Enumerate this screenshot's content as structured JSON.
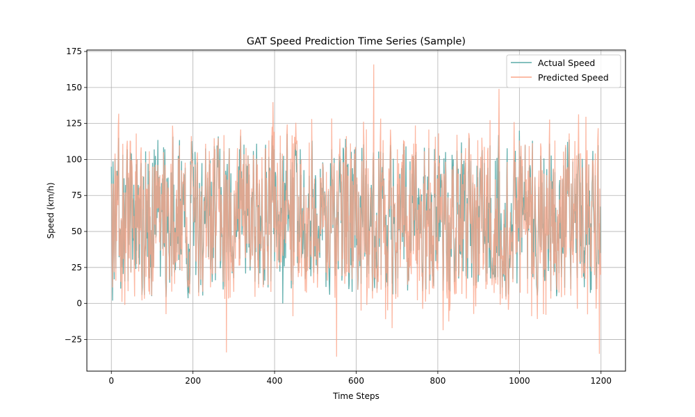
{
  "chart_data": {
    "type": "line",
    "title": "GAT Speed Prediction Time Series (Sample)",
    "xlabel": "Time Steps",
    "ylabel": "Speed (km/h)",
    "xlim": [
      -60,
      1260
    ],
    "ylim": [
      -47,
      176
    ],
    "xticks": [
      0,
      200,
      400,
      600,
      800,
      1000,
      1200
    ],
    "yticks": [
      -25,
      0,
      25,
      50,
      75,
      100,
      125,
      150,
      175
    ],
    "grid": true,
    "legend_position": "top-right",
    "series": [
      {
        "name": "Actual Speed",
        "color": "#5aaba9",
        "n_points": 1200,
        "approx_range": [
          1,
          120
        ],
        "notable_points": [
          [
            0,
            95
          ],
          [
            3,
            2
          ],
          [
            420,
            0
          ],
          [
            1000,
            120
          ],
          [
            1199,
            35
          ]
        ]
      },
      {
        "name": "Predicted Speed",
        "color": "#fba589",
        "n_points": 1200,
        "approx_range": [
          -37,
          166
        ],
        "notable_points": [
          [
            282,
            -34
          ],
          [
            552,
            -37
          ],
          [
            643,
            166
          ],
          [
            950,
            149
          ],
          [
            1196,
            -35
          ]
        ]
      }
    ]
  }
}
